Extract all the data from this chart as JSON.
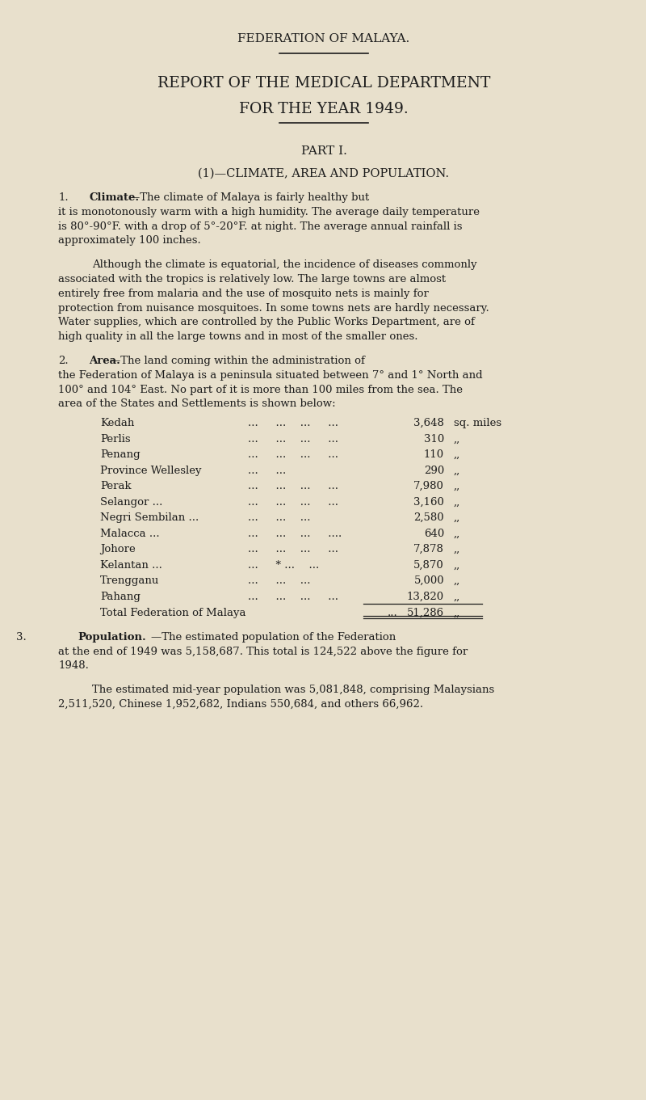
{
  "background_color": "#e8e0cc",
  "text_color": "#1c1c1c",
  "page_title": "FEDERATION OF MALAYA.",
  "report_title_line1": "REPORT OF THE MEDICAL DEPARTMENT",
  "report_title_line2": "FOR THE YEAR 1949.",
  "part_label": "PART I.",
  "section_title": "(1)—CLIMATE, AREA AND POPULATION.",
  "p1_num": "1.",
  "p1_head": "Climate.",
  "p1_rest": "—The climate of Malaya is fairly healthy but it is monotonously warm with a high humidity.  The average daily temperature is 80°-90°F. with a drop of 5°-20°F. at night. The average annual rainfall is approximately 100 inches.",
  "p2_text": "Although the climate is equatorial, the incidence of diseases commonly associated with the tropics is relatively low.  The large towns are almost entirely free from malaria and the use of mosquito nets is mainly for protection from nuisance mosquitoes.  In some towns nets are hardly necessary.  Water supplies, which are controlled by the Public Works Department, are of high quality in all the large towns and in most of the smaller ones.",
  "p3_num": "2.",
  "p3_head": "Area.",
  "p3_rest": "—The land coming within the administration of the Federation of Malaya is a peninsula situated between 7° and 1° North and 100° and 104° East.  No part of it is more than 100 miles from the sea.  The area of the States and Settlements is shown below:",
  "state_rows": [
    [
      "Kedah",
      "...   ...  ...   ...",
      "3,648",
      "sq. miles"
    ],
    [
      "Perlis",
      "...   ...  ...   ...",
      "310",
      ",,"
    ],
    [
      "Penang",
      "...   ...  ...   ...",
      "110",
      ",,"
    ],
    [
      "Province Wellesley",
      "...   ...",
      "290",
      ",,"
    ],
    [
      "Perak",
      "...   ...  ...   ...",
      "7,980",
      ",,"
    ],
    [
      "Selangor ...",
      "...   ...  ...   ...",
      "3,160",
      ",,"
    ],
    [
      "Negri Sembilan ...",
      "...   ...  ...",
      "2,580",
      ",,"
    ],
    [
      "Malacca ...",
      "...   ...  ...   ....",
      "640",
      ",,"
    ],
    [
      "Johore",
      "...   ...  ...   ...",
      "7,878",
      ",,"
    ],
    [
      "Kelantan ...",
      "...   * ...  ...",
      "5,870",
      ",,"
    ],
    [
      "Trengganu",
      "...   ...  ...",
      "5,000",
      ",,"
    ],
    [
      "Pahang",
      "...   ...  ...   ...",
      "13,820",
      ",,"
    ]
  ],
  "total_label": "Total Federation of Malaya",
  "total_dots": "...",
  "total_value": "51,286",
  "total_unit": ",,",
  "p4_num": "3.",
  "p4_head": "Population.",
  "p4_rest": "—The estimated population of the Federation at the end of 1949 was 5,158,687.  This total is 124,522 above the figure for 1948.",
  "p5_text": "The estimated mid-year population was 5,081,848, comprising Malaysians 2,511,520, Chinese 1,952,682, Indians 550,684, and others 66,962.",
  "figwidth": 8.0,
  "figheight": 13.61,
  "dpi": 100
}
